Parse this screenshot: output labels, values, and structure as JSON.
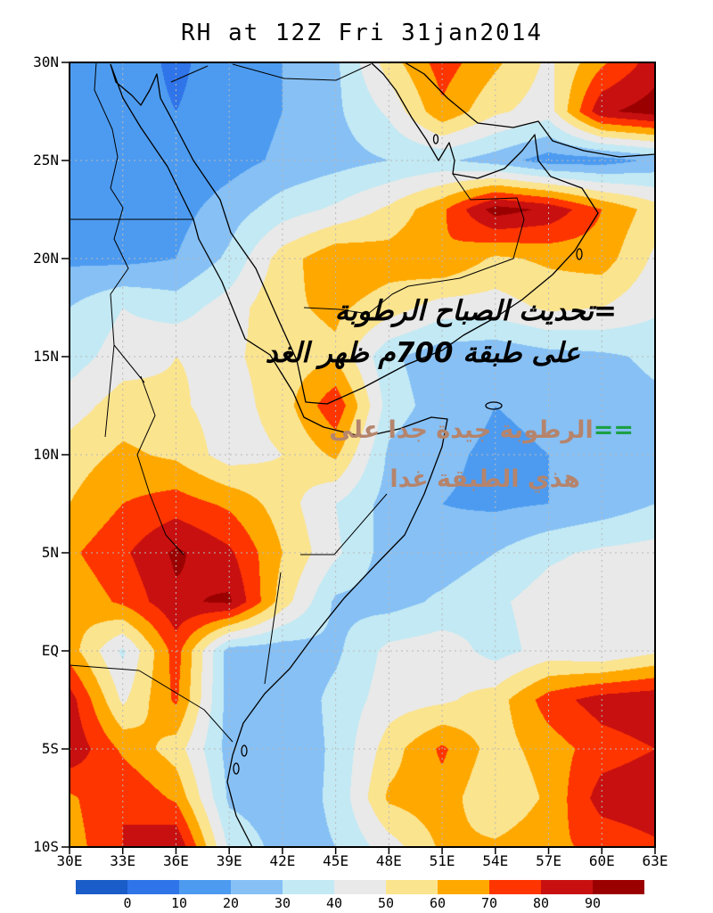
{
  "title": "RH at 12Z Fri 31jan2014",
  "axes": {
    "lat_ticks": [
      "30N",
      "25N",
      "20N",
      "15N",
      "10N",
      "5N",
      "EQ",
      "5S",
      "10S"
    ],
    "lon_ticks": [
      "30E",
      "33E",
      "36E",
      "39E",
      "42E",
      "45E",
      "48E",
      "51E",
      "54E",
      "57E",
      "60E",
      "63E"
    ]
  },
  "colorbar": {
    "labels": [
      "0",
      "10",
      "20",
      "30",
      "40",
      "50",
      "60",
      "70",
      "80",
      "90"
    ],
    "colors": [
      "#1A5CC8",
      "#2F74E8",
      "#4D9BF0",
      "#86C0F5",
      "#C2E9F4",
      "#E9E9E9",
      "#FBE48E",
      "#FFA800",
      "#FF3500",
      "#C81010",
      "#9B0000"
    ]
  },
  "annotations": {
    "black": {
      "color": "#000000",
      "line1": "=تحديث الصباح الرطوبة",
      "line2": "على طبقة 700م ظهر الغد"
    },
    "tan": {
      "color": "#B5846C",
      "prefix": "==",
      "prefix_color": "#1CA044",
      "line1": "الرطوبة جيدة جدا على",
      "line2": "هذي الطبقة غدا"
    }
  },
  "chart_data": {
    "type": "heatmap",
    "title": "RH at 12Z Fri 31jan2014",
    "variable": "RH",
    "legend_position": "bottom",
    "grid": true,
    "x_lon": [
      30,
      33,
      36,
      39,
      42,
      45,
      48,
      51,
      54,
      57,
      60,
      63
    ],
    "y_lat": [
      30,
      27.5,
      25,
      22.5,
      20,
      17.5,
      15,
      12.5,
      10,
      7.5,
      5,
      2.5,
      0,
      -2.5,
      -5,
      -7.5,
      -10
    ],
    "levels": [
      0,
      10,
      20,
      30,
      40,
      50,
      60,
      70,
      80,
      90
    ],
    "palette": [
      "#1A5CC8",
      "#2F74E8",
      "#4D9BF0",
      "#86C0F5",
      "#C2E9F4",
      "#E9E9E9",
      "#FBE48E",
      "#FFA800",
      "#FF3500",
      "#C81010",
      "#9B0000"
    ],
    "values": [
      [
        15,
        15,
        8,
        15,
        20,
        28,
        55,
        75,
        62,
        48,
        68,
        85
      ],
      [
        15,
        14,
        10,
        14,
        20,
        28,
        42,
        68,
        52,
        45,
        88,
        95
      ],
      [
        14,
        13,
        12,
        16,
        22,
        26,
        30,
        32,
        25,
        15,
        15,
        22
      ],
      [
        16,
        15,
        16,
        25,
        35,
        42,
        52,
        68,
        95,
        88,
        70,
        55
      ],
      [
        18,
        17,
        20,
        32,
        55,
        68,
        65,
        70,
        58,
        62,
        65,
        48
      ],
      [
        30,
        40,
        35,
        45,
        58,
        62,
        55,
        45,
        45,
        52,
        50,
        42
      ],
      [
        35,
        45,
        50,
        48,
        55,
        58,
        32,
        24,
        22,
        26,
        28,
        32
      ],
      [
        45,
        55,
        52,
        45,
        55,
        78,
        35,
        25,
        20,
        22,
        25,
        28
      ],
      [
        55,
        62,
        58,
        45,
        50,
        62,
        28,
        22,
        18,
        20,
        23,
        27
      ],
      [
        60,
        70,
        75,
        68,
        55,
        40,
        26,
        20,
        18,
        20,
        24,
        30
      ],
      [
        68,
        78,
        92,
        82,
        60,
        42,
        25,
        24,
        30,
        38,
        42,
        44
      ],
      [
        62,
        72,
        88,
        92,
        55,
        28,
        26,
        32,
        38,
        45,
        48,
        50
      ],
      [
        65,
        38,
        75,
        25,
        24,
        28,
        43,
        46,
        36,
        44,
        40,
        48
      ],
      [
        85,
        48,
        72,
        25,
        22,
        33,
        45,
        48,
        55,
        75,
        85,
        88
      ],
      [
        88,
        68,
        55,
        26,
        22,
        32,
        55,
        72,
        55,
        65,
        75,
        80
      ],
      [
        68,
        80,
        68,
        28,
        24,
        32,
        62,
        66,
        50,
        62,
        85,
        88
      ],
      [
        65,
        80,
        90,
        38,
        26,
        30,
        45,
        62,
        62,
        68,
        72,
        78
      ]
    ]
  }
}
